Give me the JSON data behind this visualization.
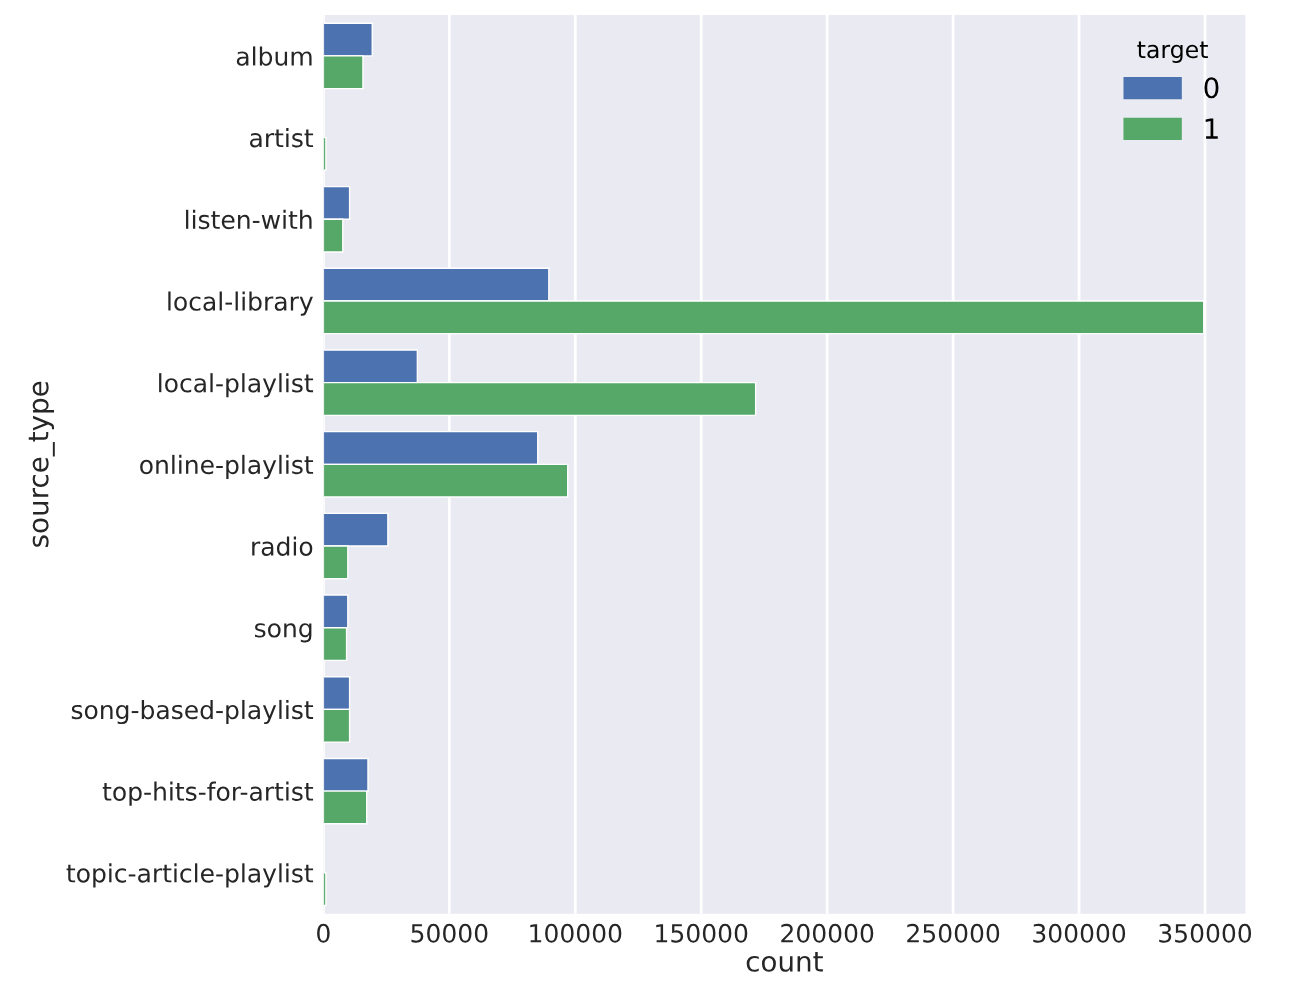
{
  "chart_data": {
    "type": "bar",
    "orientation": "horizontal",
    "xlabel": "count",
    "ylabel": "source_type",
    "legend_title": "target",
    "legend": "top right",
    "grid": "x",
    "categories": [
      "album",
      "artist",
      "listen-with",
      "local-library",
      "local-playlist",
      "online-playlist",
      "radio",
      "song",
      "song-based-playlist",
      "top-hits-for-artist",
      "topic-article-playlist"
    ],
    "series": [
      {
        "name": "0",
        "color": "#4c72b0",
        "values": [
          19400,
          null,
          10400,
          89500,
          37300,
          85100,
          25600,
          9700,
          10400,
          17700,
          null
        ]
      },
      {
        "name": "1",
        "color": "#55a868",
        "values": [
          15700,
          1000,
          7700,
          349500,
          171600,
          97000,
          9700,
          9200,
          10400,
          17200,
          1000
        ]
      }
    ],
    "xlim": [
      0,
      366000
    ],
    "xticks": [
      0,
      50000,
      100000,
      150000,
      200000,
      250000,
      300000,
      350000
    ]
  }
}
